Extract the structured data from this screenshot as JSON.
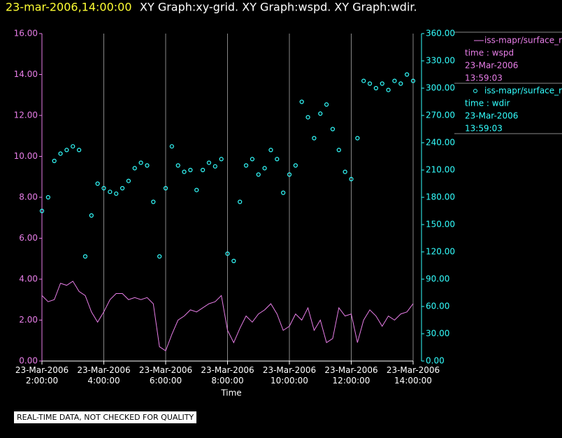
{
  "chart_data": {
    "type": "xy",
    "title": "23-mar-2006,14:00:00",
    "subtitle": "XY Graph:xy-grid.  XY Graph:wspd.  XY Graph:wdir.",
    "x_label": "Time",
    "footer": "REAL-TIME DATA, NOT CHECKED FOR QUALITY",
    "xlim": [
      2,
      14
    ],
    "xticks": [
      {
        "value": 2,
        "label": "23-Mar-2006\n2:00:00"
      },
      {
        "value": 4,
        "label": "23-Mar-2006\n4:00:00"
      },
      {
        "value": 6,
        "label": "23-Mar-2006\n6:00:00"
      },
      {
        "value": 8,
        "label": "23-Mar-2006\n8:00:00"
      },
      {
        "value": 10,
        "label": "23-Mar-2006\n10:00:00"
      },
      {
        "value": 12,
        "label": "23-Mar-2006\n12:00:00"
      },
      {
        "value": 14,
        "label": "23-Mar-2006\n14:00:00"
      }
    ],
    "ylim": [
      0,
      16
    ],
    "yticks": [
      {
        "value": 0,
        "label": "0.00"
      },
      {
        "value": 2,
        "label": "2.00"
      },
      {
        "value": 4,
        "label": "4.00"
      },
      {
        "value": 6,
        "label": "6.00"
      },
      {
        "value": 8,
        "label": "8.00"
      },
      {
        "value": 10,
        "label": "10.00"
      },
      {
        "value": 12,
        "label": "12.00"
      },
      {
        "value": 14,
        "label": "14.00"
      },
      {
        "value": 16,
        "label": "16.00"
      }
    ],
    "y2lim": [
      0,
      360
    ],
    "y2ticks": [
      {
        "value": 0,
        "label": "0.00"
      },
      {
        "value": 30,
        "label": "30.00"
      },
      {
        "value": 60,
        "label": "60.00"
      },
      {
        "value": 90,
        "label": "90.00"
      },
      {
        "value": 120,
        "label": "120.00"
      },
      {
        "value": 150,
        "label": "150.00"
      },
      {
        "value": 180,
        "label": "180.00"
      },
      {
        "value": 210,
        "label": "210.00"
      },
      {
        "value": 240,
        "label": "240.00"
      },
      {
        "value": 270,
        "label": "270.00"
      },
      {
        "value": 300,
        "label": "300.00"
      },
      {
        "value": 330,
        "label": "330.00"
      },
      {
        "value": 360,
        "label": "360.00"
      }
    ],
    "grid": true,
    "x": [
      2.0,
      2.2,
      2.4,
      2.6,
      2.8,
      3.0,
      3.2,
      3.4,
      3.6,
      3.8,
      4.0,
      4.2,
      4.4,
      4.6,
      4.8,
      5.0,
      5.2,
      5.4,
      5.6,
      5.8,
      6.0,
      6.2,
      6.4,
      6.6,
      6.8,
      7.0,
      7.2,
      7.4,
      7.6,
      7.8,
      8.0,
      8.2,
      8.4,
      8.6,
      8.8,
      9.0,
      9.2,
      9.4,
      9.6,
      9.8,
      10.0,
      10.2,
      10.4,
      10.6,
      10.8,
      11.0,
      11.2,
      11.4,
      11.6,
      11.8,
      12.0,
      12.2,
      12.4,
      12.6,
      12.8,
      13.0,
      13.2,
      13.4,
      13.6,
      13.8,
      14.0
    ],
    "series": [
      {
        "name": "iss-mapr/surface_r",
        "style": "line",
        "color": "#e87ee8",
        "details": [
          "time : wspd",
          "23-Mar-2006",
          "13:59:03"
        ],
        "values": [
          3.2,
          2.9,
          3.0,
          3.8,
          3.7,
          3.9,
          3.4,
          3.2,
          2.4,
          1.9,
          2.4,
          3.0,
          3.3,
          3.3,
          3.0,
          3.1,
          3.0,
          3.1,
          2.8,
          0.7,
          0.5,
          1.3,
          2.0,
          2.2,
          2.5,
          2.4,
          2.6,
          2.8,
          2.9,
          3.2,
          1.5,
          0.9,
          1.6,
          2.2,
          1.9,
          2.3,
          2.5,
          2.8,
          2.3,
          1.5,
          1.7,
          2.3,
          2.0,
          2.6,
          1.5,
          2.0,
          0.9,
          1.1,
          2.6,
          2.2,
          2.3,
          0.9,
          2.0,
          2.5,
          2.2,
          1.7,
          2.2,
          2.0,
          2.3,
          2.4,
          2.8
        ]
      },
      {
        "name": "iss-mapr/surface_r",
        "style": "scatter",
        "axis": "y2",
        "color": "#33ffff",
        "details": [
          "time : wdir",
          "23-Mar-2006",
          "13:59:03"
        ],
        "values": [
          165,
          180,
          220,
          228,
          232,
          236,
          232,
          115,
          160,
          195,
          190,
          186,
          184,
          190,
          198,
          212,
          218,
          215,
          175,
          115,
          190,
          236,
          215,
          208,
          210,
          188,
          210,
          218,
          214,
          222,
          118,
          110,
          175,
          215,
          222,
          205,
          212,
          232,
          222,
          185,
          205,
          215,
          285,
          268,
          245,
          272,
          282,
          255,
          232,
          208,
          200,
          245,
          308,
          305,
          300,
          305,
          298,
          308,
          305,
          315,
          308
        ]
      }
    ]
  }
}
